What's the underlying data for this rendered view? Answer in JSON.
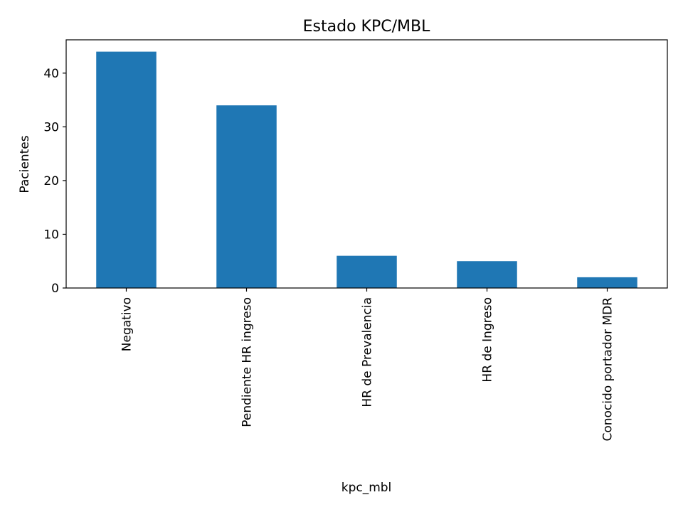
{
  "chart_data": {
    "type": "bar",
    "title": "Estado KPC/MBL",
    "xlabel": "kpc_mbl",
    "ylabel": "Pacientes",
    "categories": [
      "Negativo",
      "Pendiente HR ingreso",
      "HR de Prevalencia",
      "HR de Ingreso",
      "Conocido portador MDR"
    ],
    "values": [
      44,
      34,
      6,
      5,
      2
    ],
    "ylim": [
      0,
      46.2
    ],
    "yticks": [
      0,
      10,
      20,
      30,
      40
    ],
    "grid": false,
    "legend": false,
    "bar_color": "#1f77b4"
  }
}
